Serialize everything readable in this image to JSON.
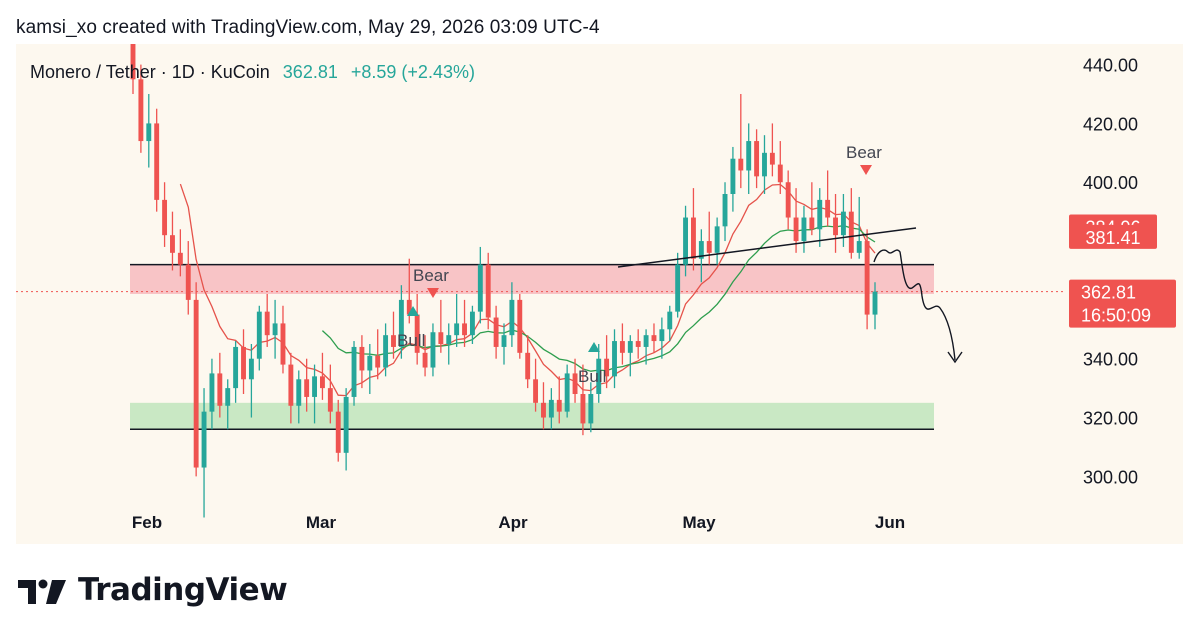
{
  "header": {
    "credit": "kamsi_xo created with TradingView.com, May 29, 2026 03:09 UTC-4"
  },
  "legend": {
    "symbol": "Monero / Tether · 1D · KuCoin",
    "price": "362.81",
    "change": "+8.59 (+2.43%)"
  },
  "brand": {
    "name": "TradingView"
  },
  "colors": {
    "up": "#26a69a",
    "down": "#ef5350",
    "resistance_zone": "#f8c4c6",
    "support_zone": "#c9e8c4",
    "background": "#fdf8ef",
    "ema_fast": "#e5534b",
    "ema_slow": "#2e9e4e"
  },
  "chart_data": {
    "type": "candlestick",
    "x_labels": [
      "Feb",
      "Mar",
      "Apr",
      "May",
      "Jun"
    ],
    "y_ticks": [
      "300.00",
      "320.00",
      "340.00",
      "400.00",
      "420.00",
      "440.00"
    ],
    "ylim": [
      277,
      447
    ],
    "price_tags": [
      {
        "label": "384.96",
        "value": 384.96,
        "color": "#ef5350"
      },
      {
        "label": "381.41",
        "value": 381.41,
        "color": "#ef5350"
      }
    ],
    "current": {
      "price_label": "362.81",
      "countdown": "16:50:09",
      "value": 362.81
    },
    "zones": [
      {
        "kind": "resistance",
        "top": 372,
        "bottom": 362
      },
      {
        "kind": "support",
        "top": 325,
        "bottom": 316
      }
    ],
    "annotations": [
      "Bear",
      "Bull",
      "Bear",
      "Bull"
    ],
    "candles": [
      [
        450,
        460,
        430,
        435
      ],
      [
        435,
        440,
        410,
        414
      ],
      [
        414,
        430,
        405,
        420
      ],
      [
        420,
        425,
        390,
        394
      ],
      [
        394,
        400,
        378,
        382
      ],
      [
        382,
        390,
        370,
        376
      ],
      [
        376,
        384,
        368,
        372
      ],
      [
        372,
        380,
        355,
        360
      ],
      [
        360,
        366,
        300,
        303
      ],
      [
        303,
        330,
        286,
        322
      ],
      [
        322,
        340,
        316,
        335
      ],
      [
        335,
        342,
        320,
        324
      ],
      [
        324,
        333,
        316,
        330
      ],
      [
        330,
        346,
        325,
        344
      ],
      [
        344,
        350,
        328,
        333
      ],
      [
        333,
        345,
        320,
        340
      ],
      [
        340,
        358,
        336,
        356
      ],
      [
        356,
        362,
        344,
        348
      ],
      [
        348,
        360,
        340,
        352
      ],
      [
        352,
        358,
        335,
        338
      ],
      [
        338,
        342,
        318,
        324
      ],
      [
        324,
        336,
        318,
        333
      ],
      [
        333,
        340,
        322,
        327
      ],
      [
        327,
        338,
        318,
        334
      ],
      [
        334,
        342,
        326,
        330
      ],
      [
        330,
        338,
        318,
        322
      ],
      [
        322,
        326,
        305,
        308
      ],
      [
        308,
        330,
        302,
        327
      ],
      [
        327,
        346,
        324,
        344
      ],
      [
        344,
        348,
        330,
        336
      ],
      [
        336,
        345,
        328,
        341
      ],
      [
        341,
        350,
        333,
        337
      ],
      [
        337,
        352,
        334,
        348
      ],
      [
        348,
        356,
        340,
        344
      ],
      [
        344,
        365,
        340,
        360
      ],
      [
        360,
        374,
        352,
        355
      ],
      [
        355,
        362,
        338,
        342
      ],
      [
        342,
        348,
        334,
        337
      ],
      [
        337,
        352,
        334,
        349
      ],
      [
        349,
        360,
        342,
        345
      ],
      [
        345,
        352,
        338,
        348
      ],
      [
        348,
        362,
        344,
        352
      ],
      [
        352,
        360,
        344,
        348
      ],
      [
        348,
        358,
        345,
        356
      ],
      [
        356,
        378,
        352,
        372
      ],
      [
        372,
        376,
        350,
        354
      ],
      [
        354,
        358,
        340,
        344
      ],
      [
        344,
        352,
        338,
        348
      ],
      [
        348,
        366,
        344,
        360
      ],
      [
        360,
        362,
        340,
        342
      ],
      [
        342,
        348,
        330,
        333
      ],
      [
        333,
        340,
        322,
        325
      ],
      [
        325,
        332,
        316,
        320
      ],
      [
        320,
        330,
        316,
        326
      ],
      [
        326,
        334,
        318,
        322
      ],
      [
        322,
        338,
        320,
        335
      ],
      [
        335,
        340,
        325,
        328
      ],
      [
        328,
        338,
        314,
        318
      ],
      [
        318,
        332,
        315,
        328
      ],
      [
        328,
        345,
        325,
        340
      ],
      [
        340,
        348,
        330,
        334
      ],
      [
        334,
        350,
        330,
        346
      ],
      [
        346,
        352,
        338,
        342
      ],
      [
        342,
        348,
        334,
        346
      ],
      [
        346,
        350,
        340,
        344
      ],
      [
        344,
        350,
        338,
        348
      ],
      [
        348,
        352,
        342,
        346
      ],
      [
        346,
        354,
        340,
        350
      ],
      [
        350,
        358,
        346,
        356
      ],
      [
        356,
        376,
        354,
        372
      ],
      [
        372,
        392,
        368,
        388
      ],
      [
        388,
        398,
        370,
        374
      ],
      [
        374,
        384,
        366,
        380
      ],
      [
        380,
        390,
        372,
        376
      ],
      [
        376,
        388,
        372,
        385
      ],
      [
        385,
        400,
        380,
        396
      ],
      [
        396,
        412,
        390,
        408
      ],
      [
        408,
        430,
        398,
        404
      ],
      [
        404,
        420,
        396,
        414
      ],
      [
        414,
        418,
        398,
        402
      ],
      [
        402,
        416,
        396,
        410
      ],
      [
        410,
        420,
        402,
        406
      ],
      [
        406,
        414,
        396,
        400
      ],
      [
        400,
        404,
        384,
        388
      ],
      [
        388,
        398,
        376,
        380
      ],
      [
        380,
        392,
        376,
        388
      ],
      [
        388,
        400,
        382,
        384
      ],
      [
        384,
        398,
        378,
        394
      ],
      [
        394,
        404,
        385,
        388
      ],
      [
        388,
        396,
        376,
        382
      ],
      [
        382,
        396,
        378,
        390
      ],
      [
        390,
        398,
        374,
        376
      ],
      [
        376,
        395,
        374,
        380
      ],
      [
        380,
        384,
        350,
        355
      ],
      [
        355,
        366,
        350,
        362.81
      ]
    ]
  }
}
